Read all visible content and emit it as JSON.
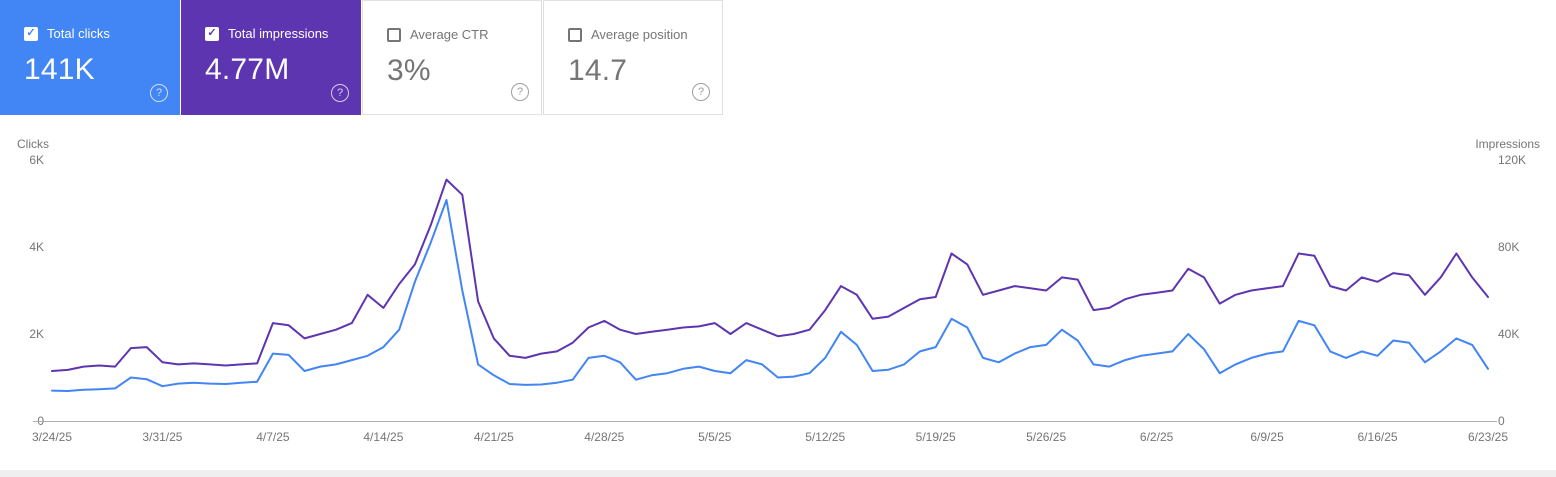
{
  "cards": [
    {
      "label": "Total clicks",
      "value": "141K",
      "checked": true,
      "bg": "#4285f4",
      "label_color": "#ffffff",
      "value_color": "#ffffff",
      "help_color": "rgba(255,255,255,0.75)"
    },
    {
      "label": "Total impressions",
      "value": "4.77M",
      "checked": true,
      "bg": "#5e35b1",
      "label_color": "#ffffff",
      "value_color": "#ffffff",
      "help_color": "rgba(255,255,255,0.75)"
    },
    {
      "label": "Average CTR",
      "value": "3%",
      "checked": false,
      "bg": "#ffffff",
      "label_color": "#757575",
      "value_color": "#757575",
      "help_color": "#9e9e9e"
    },
    {
      "label": "Average position",
      "value": "14.7",
      "checked": false,
      "bg": "#ffffff",
      "label_color": "#757575",
      "value_color": "#757575",
      "help_color": "#9e9e9e"
    }
  ],
  "chart_data": {
    "type": "line",
    "title": "",
    "grid": "none",
    "legend": "none",
    "left_axis": {
      "label": "Clicks",
      "ticks": [
        "0",
        "2K",
        "4K",
        "6K"
      ],
      "min": 0,
      "max": 6000
    },
    "right_axis": {
      "label": "Impressions",
      "ticks": [
        "0",
        "40K",
        "80K",
        "120K"
      ],
      "min": 0,
      "max": 120000
    },
    "x_tick_labels": [
      "3/24/25",
      "3/31/25",
      "4/7/25",
      "4/14/25",
      "4/21/25",
      "4/28/25",
      "5/5/25",
      "5/12/25",
      "5/19/25",
      "5/26/25",
      "6/2/25",
      "6/9/25",
      "6/16/25",
      "6/23/25"
    ],
    "x": [
      "3/24/25",
      "3/25/25",
      "3/26/25",
      "3/27/25",
      "3/28/25",
      "3/29/25",
      "3/30/25",
      "3/31/25",
      "4/1/25",
      "4/2/25",
      "4/3/25",
      "4/4/25",
      "4/5/25",
      "4/6/25",
      "4/7/25",
      "4/8/25",
      "4/9/25",
      "4/10/25",
      "4/11/25",
      "4/12/25",
      "4/13/25",
      "4/14/25",
      "4/15/25",
      "4/16/25",
      "4/17/25",
      "4/18/25",
      "4/19/25",
      "4/20/25",
      "4/21/25",
      "4/22/25",
      "4/23/25",
      "4/24/25",
      "4/25/25",
      "4/26/25",
      "4/27/25",
      "4/28/25",
      "4/29/25",
      "4/30/25",
      "5/1/25",
      "5/2/25",
      "5/3/25",
      "5/4/25",
      "5/5/25",
      "5/6/25",
      "5/7/25",
      "5/8/25",
      "5/9/25",
      "5/10/25",
      "5/11/25",
      "5/12/25",
      "5/13/25",
      "5/14/25",
      "5/15/25",
      "5/16/25",
      "5/17/25",
      "5/18/25",
      "5/19/25",
      "5/20/25",
      "5/21/25",
      "5/22/25",
      "5/23/25",
      "5/24/25",
      "5/25/25",
      "5/26/25",
      "5/27/25",
      "5/28/25",
      "5/29/25",
      "5/30/25",
      "5/31/25",
      "6/1/25",
      "6/2/25",
      "6/3/25",
      "6/4/25",
      "6/5/25",
      "6/6/25",
      "6/7/25",
      "6/8/25",
      "6/9/25",
      "6/10/25",
      "6/11/25",
      "6/12/25",
      "6/13/25",
      "6/14/25",
      "6/15/25",
      "6/16/25",
      "6/17/25",
      "6/18/25",
      "6/19/25",
      "6/20/25",
      "6/21/25",
      "6/22/25",
      "6/23/25"
    ],
    "series": [
      {
        "name": "Clicks",
        "axis": "left",
        "color": "#4285f4",
        "values": [
          700,
          690,
          720,
          730,
          750,
          1000,
          960,
          800,
          860,
          880,
          860,
          850,
          880,
          900,
          1550,
          1520,
          1150,
          1250,
          1300,
          1400,
          1500,
          1700,
          2100,
          3200,
          4100,
          5080,
          3000,
          1300,
          1050,
          850,
          830,
          840,
          880,
          950,
          1450,
          1500,
          1350,
          950,
          1050,
          1100,
          1200,
          1250,
          1150,
          1100,
          1400,
          1300,
          1000,
          1020,
          1100,
          1450,
          2050,
          1750,
          1150,
          1180,
          1300,
          1600,
          1700,
          2350,
          2150,
          1450,
          1350,
          1550,
          1700,
          1750,
          2100,
          1850,
          1300,
          1250,
          1400,
          1500,
          1550,
          1600,
          2000,
          1650,
          1100,
          1300,
          1450,
          1550,
          1600,
          2300,
          2200,
          1600,
          1450,
          1600,
          1500,
          1850,
          1800,
          1350,
          1600,
          1900,
          1750,
          1200
        ]
      },
      {
        "name": "Impressions",
        "axis": "right",
        "color": "#5e35b1",
        "values": [
          23000,
          23500,
          25000,
          25500,
          25000,
          33500,
          34000,
          27000,
          26000,
          26500,
          26000,
          25500,
          26000,
          26500,
          45000,
          44000,
          38000,
          40000,
          42000,
          45000,
          58000,
          52000,
          63000,
          72000,
          90000,
          111000,
          104000,
          55000,
          38000,
          30000,
          29000,
          31000,
          32000,
          36000,
          43000,
          46000,
          42000,
          40000,
          41000,
          42000,
          43000,
          43500,
          45000,
          40000,
          45000,
          42000,
          39000,
          40000,
          42000,
          51000,
          62000,
          58000,
          47000,
          48000,
          52000,
          56000,
          57000,
          77000,
          72000,
          58000,
          60000,
          62000,
          61000,
          60000,
          66000,
          65000,
          51000,
          52000,
          56000,
          58000,
          59000,
          60000,
          70000,
          66000,
          54000,
          58000,
          60000,
          61000,
          62000,
          77000,
          76000,
          62000,
          60000,
          66000,
          64000,
          68000,
          67000,
          58000,
          66000,
          77000,
          66000,
          57000
        ]
      }
    ]
  }
}
